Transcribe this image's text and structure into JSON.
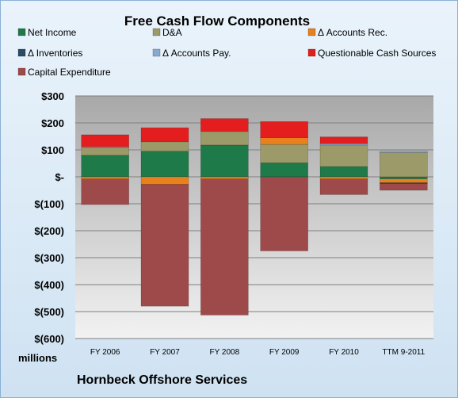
{
  "company_name": "Hornbeck Offshore Services",
  "colors": {
    "Net Income": "#1e7a48",
    "D&A": "#9c9a68",
    "Δ Accounts Rec.": "#e8801c",
    "Δ Inventories": "#2a4a6a",
    "Δ Accounts Pay.": "#88aad0",
    "Questionable Cash Sources": "#e41e1e",
    "Capital Expenditure": "#9e4a4a",
    "plot_bg_top": "#a8a8a8",
    "plot_bg_bottom": "#f2f2f2",
    "gridline": "#7f7f7f"
  },
  "chart_data": {
    "type": "bar",
    "stacked": true,
    "title": "Free Cash Flow Components",
    "ylabel": "millions",
    "ylim": [
      -600,
      300
    ],
    "y_ticks": [
      300,
      200,
      100,
      0,
      -100,
      -200,
      -300,
      -400,
      -500,
      -600
    ],
    "y_tick_labels": [
      "$300",
      "$200",
      "$100",
      "$-",
      "$(100)",
      "$(200)",
      "$(300)",
      "$(400)",
      "$(500)",
      "$(600)"
    ],
    "grid": true,
    "legend_position": "top",
    "categories": [
      "FY 2006",
      "FY 2007",
      "FY 2008",
      "FY 2009",
      "FY 2010",
      "TTM 9-2011"
    ],
    "series": [
      {
        "name": "Net Income",
        "values": [
          80,
          95,
          118,
          52,
          38,
          -8
        ]
      },
      {
        "name": "D&A",
        "values": [
          28,
          35,
          50,
          68,
          80,
          90
        ]
      },
      {
        "name": "Δ Accounts Rec.",
        "values": [
          -8,
          -28,
          -8,
          25,
          -8,
          -14
        ]
      },
      {
        "name": "Δ Inventories",
        "values": [
          0,
          0,
          0,
          0,
          0,
          -3
        ]
      },
      {
        "name": "Δ Accounts Pay.",
        "values": [
          3,
          0,
          0,
          0,
          5,
          5
        ]
      },
      {
        "name": "Questionable Cash Sources",
        "values": [
          45,
          52,
          48,
          60,
          25,
          0
        ]
      },
      {
        "name": "Capital Expenditure",
        "values": [
          -95,
          -452,
          -505,
          -275,
          -58,
          -25
        ]
      }
    ]
  }
}
